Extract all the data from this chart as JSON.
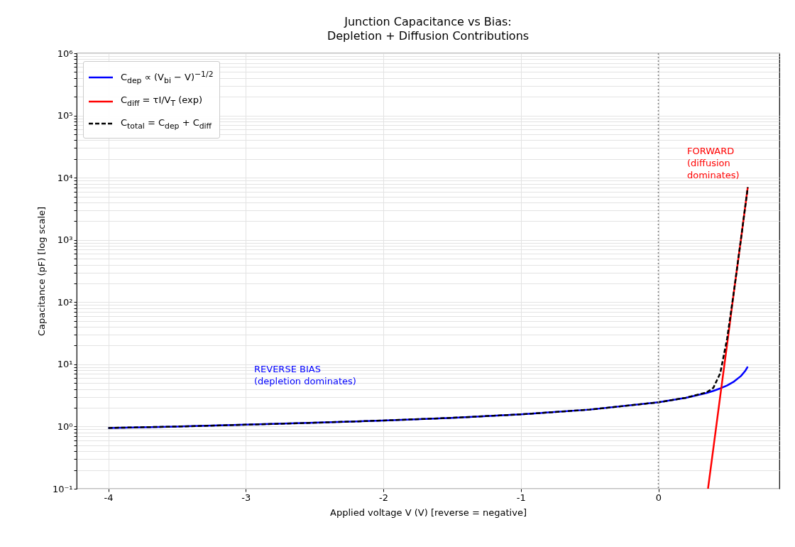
{
  "chart_data": {
    "type": "line",
    "title": "Junction Capacitance vs Bias:\nDepletion + Diffusion Contributions",
    "xlabel": "Applied voltage  V  (V)   [reverse = negative]",
    "ylabel": "Capacitance  (pF)  [log scale]",
    "series": [
      {
        "name": "C$_{dep}$ ∝ (V$_{bi}$ − V)$^{−1/2}$",
        "color": "#0000ff",
        "line_style": "solid",
        "x": [
          -4,
          -3.5,
          -3,
          -2.5,
          -2,
          -1.5,
          -1,
          -0.5,
          0,
          0.2,
          0.35,
          0.4,
          0.45,
          0.5,
          0.55,
          0.6,
          0.63,
          0.65
        ],
        "values": [
          0.95,
          1.0,
          1.07,
          1.15,
          1.25,
          1.38,
          1.57,
          1.87,
          2.45,
          2.9,
          3.46,
          3.74,
          4.1,
          4.58,
          5.29,
          6.48,
          7.75,
          9.2
        ]
      },
      {
        "name": "C$_{diff}$ = τI/V$_{T}$ (exp)",
        "color": "#ff0000",
        "line_style": "solid",
        "x": [
          0.361,
          0.4,
          0.45,
          0.5,
          0.55,
          0.6,
          0.65
        ],
        "values": [
          0.1,
          0.45,
          3.1,
          21,
          150,
          1000,
          7000
        ]
      },
      {
        "name": "C$_{total}$ = C$_{dep}$ + C$_{diff}$",
        "color": "#000000",
        "line_style": "dashed",
        "x": [
          -4,
          -3.5,
          -3,
          -2.5,
          -2,
          -1.5,
          -1,
          -0.5,
          0,
          0.2,
          0.35,
          0.4,
          0.45,
          0.5,
          0.55,
          0.6,
          0.65
        ],
        "values": [
          0.95,
          1.0,
          1.07,
          1.15,
          1.25,
          1.38,
          1.57,
          1.87,
          2.45,
          2.9,
          3.53,
          4.2,
          7.2,
          26,
          152,
          1010,
          7000
        ]
      }
    ],
    "xlim": [
      -4.23,
      0.88
    ],
    "xticks": [
      -4,
      -3,
      -2,
      -1,
      0
    ],
    "ylim": [
      0.1,
      1000000
    ],
    "log": "y",
    "yticks": [
      {
        "value": 0.1,
        "label": "10⁻¹"
      },
      {
        "value": 0.2,
        "label": null
      },
      {
        "value": 0.3,
        "label": null
      },
      {
        "value": 0.4,
        "label": null
      },
      {
        "value": 0.5,
        "label": null
      },
      {
        "value": 0.6,
        "label": null
      },
      {
        "value": 0.7,
        "label": null
      },
      {
        "value": 0.8,
        "label": null
      },
      {
        "value": 0.9,
        "label": null
      },
      {
        "value": 1,
        "label": "10⁰"
      },
      {
        "value": 2,
        "label": null
      },
      {
        "value": 3,
        "label": null
      },
      {
        "value": 4,
        "label": null
      },
      {
        "value": 5,
        "label": null
      },
      {
        "value": 6,
        "label": null
      },
      {
        "value": 7,
        "label": null
      },
      {
        "value": 8,
        "label": null
      },
      {
        "value": 9,
        "label": null
      },
      {
        "value": 10,
        "label": "10¹"
      },
      {
        "value": 20,
        "label": null
      },
      {
        "value": 30,
        "label": null
      },
      {
        "value": 40,
        "label": null
      },
      {
        "value": 50,
        "label": null
      },
      {
        "value": 60,
        "label": null
      },
      {
        "value": 70,
        "label": null
      },
      {
        "value": 80,
        "label": null
      },
      {
        "value": 90,
        "label": null
      },
      {
        "value": 100,
        "label": "10²"
      },
      {
        "value": 200,
        "label": null
      },
      {
        "value": 300,
        "label": null
      },
      {
        "value": 400,
        "label": null
      },
      {
        "value": 500,
        "label": null
      },
      {
        "value": 600,
        "label": null
      },
      {
        "value": 700,
        "label": null
      },
      {
        "value": 800,
        "label": null
      },
      {
        "value": 900,
        "label": null
      },
      {
        "value": 1000,
        "label": "10³"
      },
      {
        "value": 2000,
        "label": null
      },
      {
        "value": 3000,
        "label": null
      },
      {
        "value": 4000,
        "label": null
      },
      {
        "value": 5000,
        "label": null
      },
      {
        "value": 6000,
        "label": null
      },
      {
        "value": 7000,
        "label": null
      },
      {
        "value": 8000,
        "label": null
      },
      {
        "value": 9000,
        "label": null
      },
      {
        "value": 10000,
        "label": "10⁴"
      },
      {
        "value": 20000,
        "label": null
      },
      {
        "value": 30000,
        "label": null
      },
      {
        "value": 40000,
        "label": null
      },
      {
        "value": 50000,
        "label": null
      },
      {
        "value": 60000,
        "label": null
      },
      {
        "value": 70000,
        "label": null
      },
      {
        "value": 80000,
        "label": null
      },
      {
        "value": 90000,
        "label": null
      },
      {
        "value": 100000,
        "label": "10⁵"
      },
      {
        "value": 200000,
        "label": null
      },
      {
        "value": 300000,
        "label": null
      },
      {
        "value": 400000,
        "label": null
      },
      {
        "value": 500000,
        "label": null
      },
      {
        "value": 600000,
        "label": null
      },
      {
        "value": 700000,
        "label": null
      },
      {
        "value": 800000,
        "label": null
      },
      {
        "value": 900000,
        "label": null
      },
      {
        "value": 1000000,
        "label": "10⁶"
      }
    ],
    "ref_lines": [
      {
        "axis": "x",
        "value": 0,
        "color": "#808080",
        "line_style": "dotted"
      }
    ],
    "annotations": [
      "REVERSE BIAS\n(depletion dominates)",
      "FORWARD\n(diffusion\ndominates)"
    ],
    "grid": true,
    "legend": "top left"
  }
}
